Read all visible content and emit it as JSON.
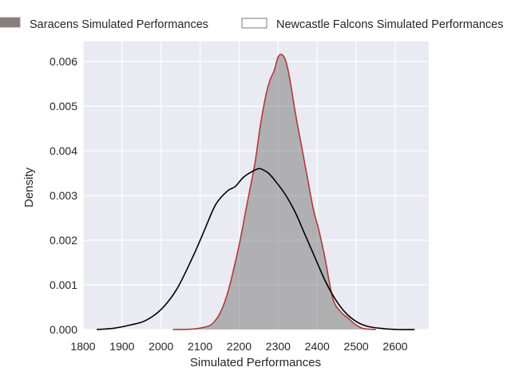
{
  "chart_data": {
    "type": "area",
    "title": "",
    "xlabel": "Simulated Performances",
    "ylabel": "Density",
    "xlim": [
      1795,
      2680
    ],
    "ylim": [
      0,
      0.00645
    ],
    "xticks": [
      1800,
      1900,
      2000,
      2100,
      2200,
      2300,
      2400,
      2500,
      2600
    ],
    "xtick_labels": [
      "1800",
      "1900",
      "2000",
      "2100",
      "2200",
      "2300",
      "2400",
      "2500",
      "2600"
    ],
    "yticks": [
      0,
      0.001,
      0.002,
      0.003,
      0.004,
      0.005,
      0.006
    ],
    "ytick_labels": [
      "0.000",
      "0.001",
      "0.002",
      "0.003",
      "0.004",
      "0.005",
      "0.006"
    ],
    "grid": true,
    "legend": {
      "position": "top",
      "columns": 2
    },
    "background": "#eaeaf2",
    "series": [
      {
        "name": "Saracens Simulated Performances",
        "fill": "#808080",
        "fill_opacity": 0.55,
        "line_color": "#b03a3a",
        "x": [
          2030,
          2080,
          2110,
          2130,
          2150,
          2170,
          2190,
          2205,
          2220,
          2240,
          2255,
          2270,
          2280,
          2290,
          2300,
          2310,
          2320,
          2330,
          2345,
          2360,
          2375,
          2390,
          2405,
          2420,
          2440,
          2460,
          2480,
          2500,
          2520,
          2550
        ],
        "y": [
          0.0,
          1e-05,
          5e-05,
          0.00012,
          0.00035,
          0.0008,
          0.0015,
          0.0021,
          0.0028,
          0.0037,
          0.0046,
          0.0053,
          0.0056,
          0.0058,
          0.0061,
          0.00615,
          0.006,
          0.0056,
          0.0048,
          0.0041,
          0.0034,
          0.0027,
          0.0022,
          0.0016,
          0.0007,
          0.0004,
          0.00025,
          0.0001,
          2e-05,
          0.0
        ]
      },
      {
        "name": "Newcastle Falcons Simulated Performances",
        "fill": "none",
        "line_color": "#000000",
        "x": [
          1835,
          1880,
          1920,
          1960,
          2000,
          2040,
          2080,
          2110,
          2140,
          2170,
          2190,
          2210,
          2230,
          2250,
          2260,
          2275,
          2295,
          2320,
          2345,
          2370,
          2395,
          2420,
          2445,
          2470,
          2500,
          2530,
          2570,
          2610,
          2650
        ],
        "y": [
          0.0,
          3e-05,
          0.0001,
          0.0002,
          0.00045,
          0.0009,
          0.0016,
          0.0022,
          0.0028,
          0.0031,
          0.0032,
          0.0034,
          0.00352,
          0.0036,
          0.00358,
          0.0035,
          0.0033,
          0.003,
          0.0026,
          0.0021,
          0.0016,
          0.0011,
          0.0007,
          0.0004,
          0.00018,
          7e-05,
          2e-05,
          0.0,
          0.0
        ]
      }
    ]
  }
}
